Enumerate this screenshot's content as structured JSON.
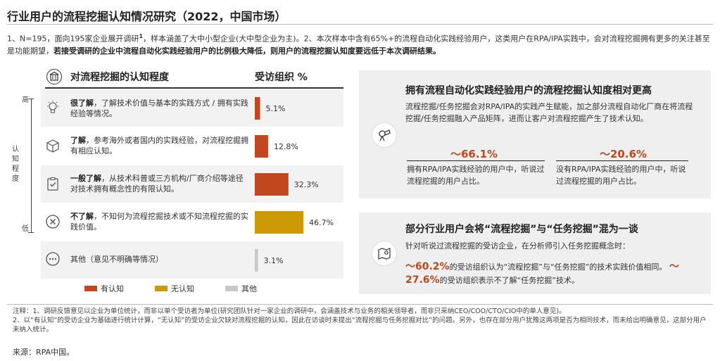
{
  "title": "行业用户的流程挖掘认知情况研究（2022，中国市场）",
  "intro": {
    "part1": "1、N=195，面向195家企业展开调研",
    "sup": "1",
    "part2": "，样本涵盖了大中小型企业(大中型企业为主)。2、本次样本中含有65%+的流程自动化实践经验用户，这类用户在RPA/IPA实践中，会对流程挖掘拥有更多的关注甚至是功能期望，",
    "bold": "若接受调研的企业中流程自动化实践经验用户的比例极大降低，则用户的流程挖掘认知度要远低于本次调研结果。"
  },
  "left_panel": {
    "title": "对流程挖掘的认知程度",
    "column_title": "受访组织 %",
    "scale_top": "高",
    "scale_bottom": "低",
    "scale_label": "认知程度",
    "rows": [
      {
        "bold": "很了解",
        "text": "，了解技术价值与基本的实践方式 / 拥有实践经验等情况。",
        "icon": "lightbulb-icon"
      },
      {
        "bold": "了解",
        "text": "，参考海外或者国内的实践经验，对流程挖掘拥有相应认知。",
        "icon": "box-icon"
      },
      {
        "bold": "一般了解",
        "text": "，从技术科普或三方机构/厂商介绍等途径对技术拥有概念性的有限认知。",
        "icon": "clipboard-check-icon"
      },
      {
        "bold": "不了解",
        "text": "，不知何为流程挖掘技术或不知流程挖掘的实践价值。",
        "icon": "x-circle-icon"
      },
      {
        "bold": "",
        "text": "其他（意见不明确等情况）",
        "icon": "dots-circle-icon"
      }
    ],
    "legend": [
      "有认知",
      "无认知",
      "其他"
    ]
  },
  "chart_data": {
    "type": "bar",
    "orientation": "horizontal",
    "categories": [
      "很了解",
      "了解",
      "一般了解",
      "不了解",
      "其他"
    ],
    "values": [
      5.1,
      12.8,
      32.3,
      46.7,
      3.1
    ],
    "labels": [
      "5.1%",
      "12.8%",
      "32.3%",
      "46.7%",
      "3.1%"
    ],
    "groups": [
      "有认知",
      "有认知",
      "有认知",
      "无认知",
      "其他"
    ],
    "colors": {
      "有认知": "#c0471e",
      "无认知": "#cc9a06",
      "其他": "#c8c8c8"
    },
    "title": "对流程挖掘的认知程度",
    "xlabel": "受访组织 %",
    "ylabel": "认知程度",
    "xlim": [
      0,
      50
    ]
  },
  "card1": {
    "title": "拥有流程自动化实践经验用户的流程挖掘认知度相对更高",
    "text": "流程挖掘/任务挖掘会对RPA/IPA的实践产生赋能，加之部分流程自动化厂商在将流程挖掘/任务挖掘融入产品矩阵，进而让客户对流程挖掘产生了技术认知。",
    "stat1_value": "～66.1%",
    "stat1_text": "拥有RPA/IPA实践经验的用户中，听说过流程挖掘的用户占比。",
    "stat2_value": "～20.6%",
    "stat2_text": "没有RPA/IPA实践经验的用户中，听说过流程挖掘的用户占比。"
  },
  "card2": {
    "title": "部分行业用户会将“流程挖掘”与“任务挖掘”混为一谈",
    "text": "针对听说过流程挖掘的受访企业，在分析师引入任务挖掘概念时：",
    "v1": "～60.2%",
    "t1": "的受访组织认为“流程挖掘”与“任务挖掘”的技术实践价值相同。",
    "v2": "～27.6%",
    "t2": "的受访组织表示不了解“任务挖掘”技术。"
  },
  "note": {
    "l1": "注释：1、调研反馈意见以企业为单位统计，而非以单个受访者为单位(研究团队针对一家企业的调研中，会涵盖技术与业务的相关领导者，而非只采纳CEO/COO/CTO/CIO中的单人意见)。",
    "l2": "2、以“有认知”的受访企业为基础进行统计计算，“无认知”的受访企业欠缺对流程挖掘的认知，因此在访谈时未提出“流程挖掘与任务挖掘对比”的问题。另外，也存在部分用户犹豫这两项是否为相同技术，而未给出明确意见，这部分用户未纳入统计。"
  },
  "source": "来源：RPA中国。"
}
